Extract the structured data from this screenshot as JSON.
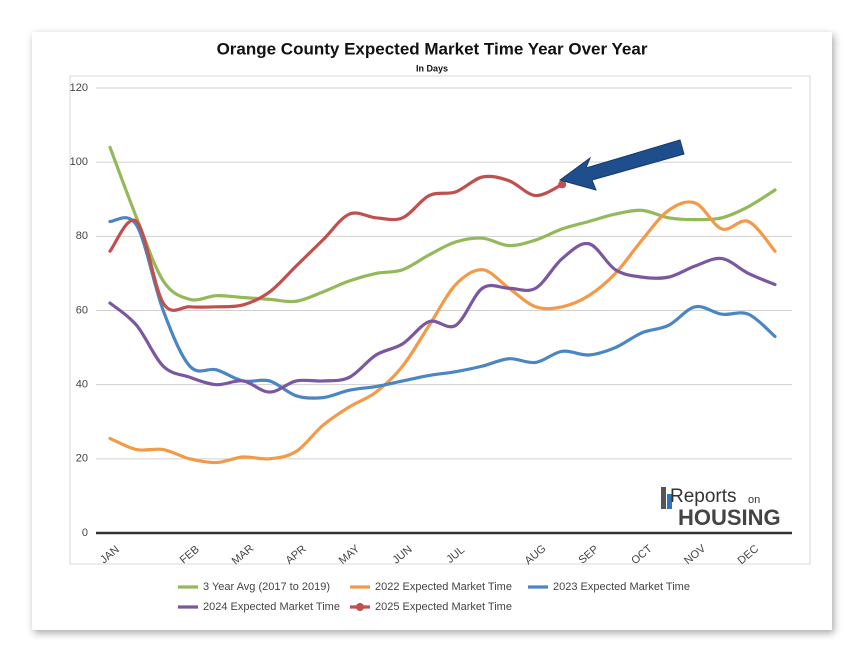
{
  "chart_data": {
    "type": "line",
    "title": "Orange County Expected Market Time Year Over Year",
    "subtitle": "In Days",
    "categories": [
      "JAN",
      null,
      null,
      "FEB",
      null,
      "MAR",
      null,
      "APR",
      null,
      "MAY",
      null,
      "JUN",
      null,
      "JUL",
      null,
      null,
      "AUG",
      null,
      "SEP",
      null,
      "OCT",
      null,
      "NOV",
      null,
      "DEC",
      null
    ],
    "ylim": [
      0,
      120
    ],
    "yticks": [
      0,
      20,
      40,
      60,
      80,
      100,
      120
    ],
    "grid": true,
    "legend": "bottom",
    "series": [
      {
        "name": "3 Year Avg (2017 to 2019)",
        "color": "#93b95a",
        "values": [
          104,
          85,
          68,
          63,
          64,
          63.5,
          63,
          62.5,
          65,
          68,
          70,
          71,
          75,
          78.5,
          79.5,
          77.5,
          79,
          82,
          84,
          86,
          87,
          85,
          84.5,
          85,
          88,
          92.5
        ]
      },
      {
        "name": "2022 Expected Market Time",
        "color": "#f39a48",
        "values": [
          25.5,
          22.5,
          22.5,
          20,
          19,
          20.5,
          20,
          22,
          29,
          34,
          38,
          45,
          56,
          67,
          71,
          66,
          61,
          61,
          64,
          70,
          79,
          87,
          89,
          82,
          84,
          76
        ]
      },
      {
        "name": "2023 Expected Market Time",
        "color": "#4a86c2",
        "values": [
          84,
          83,
          60,
          45,
          44,
          41,
          41,
          37,
          36.5,
          38.5,
          39.5,
          41,
          42.5,
          43.5,
          45,
          47,
          46,
          49,
          48,
          50,
          54,
          56,
          61,
          59,
          59,
          53
        ]
      },
      {
        "name": "2024 Expected Market Time",
        "color": "#7b57a0",
        "values": [
          62,
          56,
          45,
          42,
          40,
          41,
          38,
          41,
          41,
          42,
          48,
          51,
          57,
          56,
          66,
          66,
          66,
          74,
          78,
          71,
          69,
          69,
          72,
          74,
          70,
          67
        ]
      },
      {
        "name": "2025 Expected Market Time",
        "color": "#c0504d",
        "end_marker": true,
        "values": [
          76,
          84,
          62,
          61,
          61,
          61.5,
          65,
          72,
          79,
          86,
          85,
          85,
          91,
          92,
          96,
          95,
          91,
          94,
          null,
          null,
          null,
          null,
          null,
          null,
          null,
          null
        ]
      }
    ]
  },
  "logo": {
    "brand": "Reports",
    "small": "on",
    "sub": "HOUSING"
  }
}
